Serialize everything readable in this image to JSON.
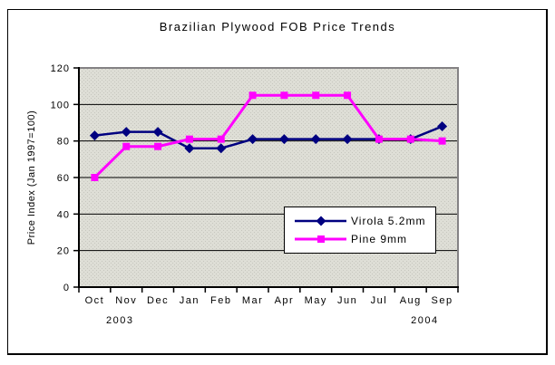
{
  "chart_data": {
    "type": "line",
    "title": "Brazilian Plywood FOB Price Trends",
    "ylabel": "Price Index (Jan 1997=100)",
    "xlabel": "",
    "categories": [
      "Oct",
      "Nov",
      "Dec",
      "Jan",
      "Feb",
      "Mar",
      "Apr",
      "May",
      "Jun",
      "Jul",
      "Aug",
      "Sep"
    ],
    "x_axis_year_labels": [
      {
        "text": "2003",
        "position_index": 0.8
      },
      {
        "text": "2004",
        "position_index": 10.45
      }
    ],
    "ylim": [
      0,
      120
    ],
    "yticks": [
      0,
      20,
      40,
      60,
      80,
      100,
      120
    ],
    "grid": true,
    "legend_position": "inside-bottom-right",
    "series": [
      {
        "name": "Virola 5.2mm",
        "color": "#000080",
        "marker": "diamond",
        "values": [
          83,
          85,
          85,
          76,
          76,
          81,
          81,
          81,
          81,
          81,
          81,
          88
        ]
      },
      {
        "name": "Pine 9mm",
        "color": "#FF00FF",
        "marker": "square",
        "values": [
          60,
          77,
          77,
          81,
          81,
          105,
          105,
          105,
          105,
          81,
          81,
          80
        ]
      }
    ],
    "colors": {
      "background": "#FFFFFF",
      "plot_bg": "#DEDED6",
      "plot_bg_dot": "#C6C6BE",
      "plot_border": "#848284",
      "gridline": "#000000",
      "axis": "#000000",
      "text": "#000000",
      "legend_bg": "#FFFFFF",
      "legend_border": "#000000"
    }
  }
}
